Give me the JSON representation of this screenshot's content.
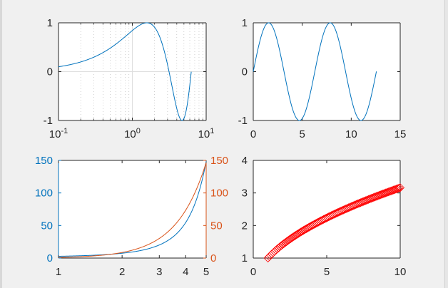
{
  "figure": {
    "background": "#f0f0f0",
    "axes_color": "#262626",
    "line_color": "#0072bd",
    "orange_color": "#d95319",
    "marker_color": "#ff0000"
  },
  "chart_data": [
    {
      "id": "semilogx",
      "type": "line",
      "xscale": "log",
      "xlim": [
        0.1,
        10
      ],
      "ylim": [
        -1,
        1
      ],
      "x_ticks": [
        {
          "value": 0.1,
          "label": "10^-1"
        },
        {
          "value": 1,
          "label": "10^0"
        },
        {
          "value": 10,
          "label": "10^1"
        }
      ],
      "y_ticks": [
        {
          "value": -1,
          "label": "-1"
        },
        {
          "value": 0,
          "label": "0"
        },
        {
          "value": 1,
          "label": "1"
        }
      ],
      "grid": true,
      "series": [
        {
          "function": "sin(x)",
          "x_range": [
            0.1,
            6.28
          ],
          "color": "#0072bd"
        }
      ]
    },
    {
      "id": "sine",
      "type": "line",
      "xlim": [
        0,
        15
      ],
      "ylim": [
        -1,
        1
      ],
      "x_ticks": [
        {
          "value": 0,
          "label": "0"
        },
        {
          "value": 5,
          "label": "5"
        },
        {
          "value": 10,
          "label": "10"
        },
        {
          "value": 15,
          "label": "15"
        }
      ],
      "y_ticks": [
        {
          "value": -1,
          "label": "-1"
        },
        {
          "value": 0,
          "label": "0"
        },
        {
          "value": 1,
          "label": "1"
        }
      ],
      "grid": false,
      "series": [
        {
          "function": "sin(x)",
          "x_range": [
            0,
            12.57
          ],
          "color": "#0072bd"
        }
      ]
    },
    {
      "id": "yyaxis",
      "type": "line",
      "xscale": "log",
      "xlim": [
        1,
        5
      ],
      "ylim_left": [
        0,
        150
      ],
      "ylim_right": [
        0,
        150
      ],
      "x_ticks": [
        {
          "value": 1,
          "label": "1"
        },
        {
          "value": 2,
          "label": "2"
        },
        {
          "value": 3,
          "label": "3"
        },
        {
          "value": 4,
          "label": "4"
        },
        {
          "value": 5,
          "label": "5"
        }
      ],
      "y_ticks_left": [
        {
          "value": 0,
          "label": "0"
        },
        {
          "value": 50,
          "label": "50"
        },
        {
          "value": 100,
          "label": "100"
        },
        {
          "value": 150,
          "label": "150"
        }
      ],
      "y_ticks_right": [
        {
          "value": 0,
          "label": "0"
        },
        {
          "value": 50,
          "label": "50"
        },
        {
          "value": 100,
          "label": "100"
        },
        {
          "value": 150,
          "label": "150"
        }
      ],
      "left_axis_color": "#0072bd",
      "right_axis_color": "#d95319",
      "series": [
        {
          "axis": "left",
          "function": "exp(x)",
          "x_range": [
            1,
            5
          ],
          "color": "#0072bd"
        },
        {
          "axis": "right",
          "function": "x^3.1",
          "x_range": [
            1,
            5
          ],
          "color": "#d95319"
        }
      ]
    },
    {
      "id": "diamonds",
      "type": "scatter",
      "xlim": [
        0,
        10
      ],
      "ylim": [
        1,
        4
      ],
      "x_ticks": [
        {
          "value": 0,
          "label": "0"
        },
        {
          "value": 5,
          "label": "5"
        },
        {
          "value": 10,
          "label": "10"
        }
      ],
      "y_ticks": [
        {
          "value": 1,
          "label": "1"
        },
        {
          "value": 2,
          "label": "2"
        },
        {
          "value": 3,
          "label": "3"
        },
        {
          "value": 4,
          "label": "4"
        }
      ],
      "marker": "diamond",
      "series": [
        {
          "function": "sqrt(x)",
          "x_range": [
            1,
            10
          ],
          "points": 101,
          "color": "#ff0000"
        }
      ]
    }
  ]
}
